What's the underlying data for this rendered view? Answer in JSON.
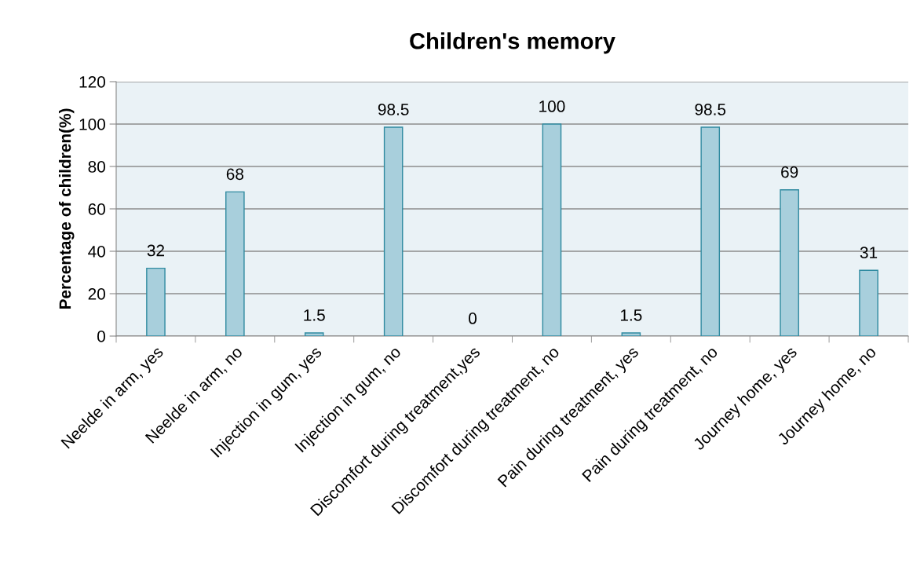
{
  "chart_data": {
    "type": "bar",
    "title": "Children's memory",
    "ylabel": "Percentage of children(%)",
    "categories": [
      "Neelde in arm, yes",
      "Neelde in arm, no",
      "Injection in gum, yes",
      "Injection in gum, no",
      "Discomfort during treatment,yes",
      "Discomfort during treatment, no",
      "Pain during treatment, yes",
      "Pain during treatment, no",
      "Journey home, yes",
      "Journey home, no"
    ],
    "values": [
      32,
      68,
      1.5,
      98.5,
      0,
      100,
      1.5,
      98.5,
      69,
      31
    ],
    "color": "#a8cfdc",
    "ylim": [
      0,
      120
    ],
    "yticks": [
      0,
      20,
      40,
      60,
      80,
      100,
      120
    ],
    "grid": "y",
    "data_labels": true
  }
}
